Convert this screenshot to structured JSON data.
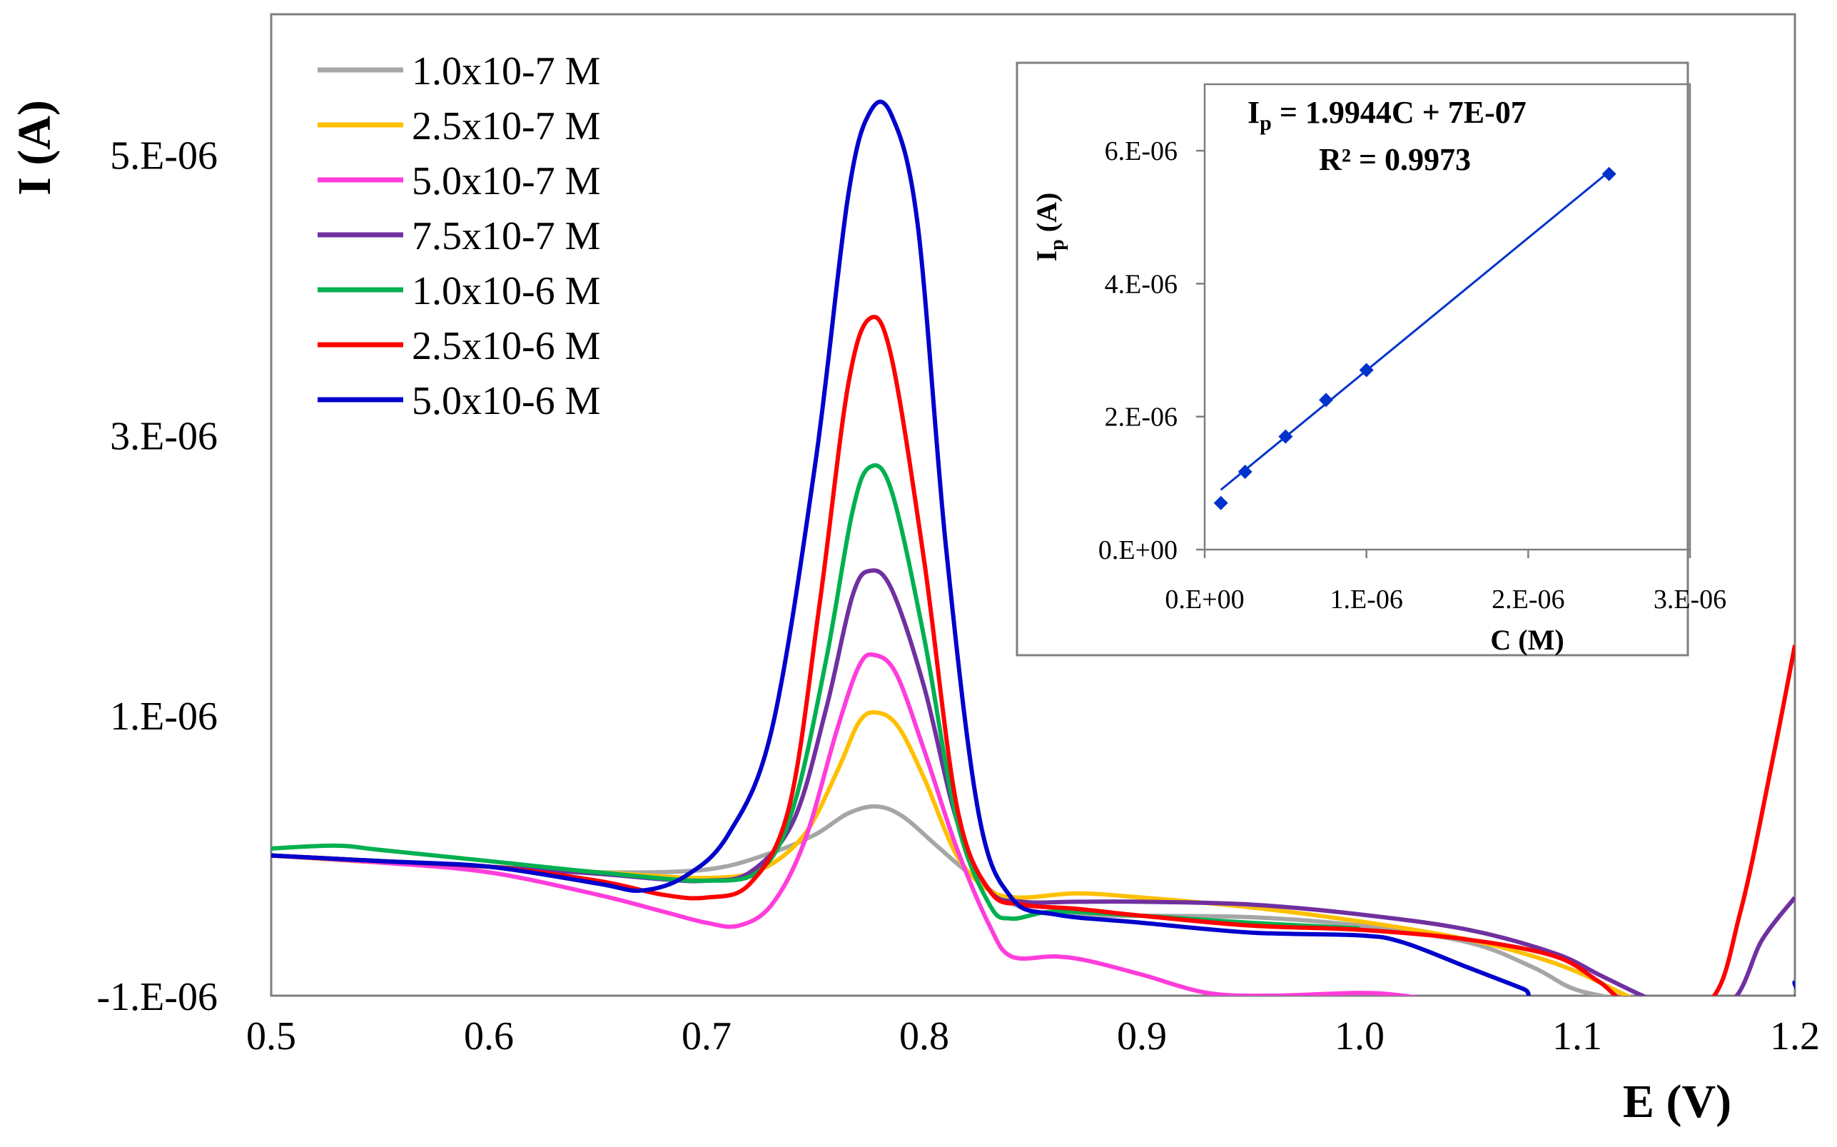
{
  "chart_data": [
    {
      "id": "main",
      "type": "line",
      "title": "",
      "xlabel": "E (V)",
      "ylabel": "I (A)",
      "xlim": [
        0.5,
        1.2
      ],
      "ylim": [
        -1e-06,
        6e-06
      ],
      "xticks": [
        {
          "value": 0.5,
          "label": "0.5"
        },
        {
          "value": 0.6,
          "label": "0.6"
        },
        {
          "value": 0.7,
          "label": "0.7"
        },
        {
          "value": 0.8,
          "label": "0.8"
        },
        {
          "value": 0.9,
          "label": "0.9"
        },
        {
          "value": 1.0,
          "label": "1.0"
        },
        {
          "value": 1.1,
          "label": "1.1"
        },
        {
          "value": 1.2,
          "label": "1.2"
        }
      ],
      "yticks": [
        {
          "value": -1e-06,
          "label": "-1.E-06"
        },
        {
          "value": 1e-06,
          "label": "1.E-06"
        },
        {
          "value": 3e-06,
          "label": "3.E-06"
        },
        {
          "value": 5e-06,
          "label": "5.E-06"
        }
      ],
      "legend": "top-left",
      "series": [
        {
          "name": "1.0x10-7 M",
          "color": "#a6a6a6",
          "points": [
            [
              0.5,
              0.0
            ],
            [
              0.55,
              -4e-08
            ],
            [
              0.6,
              -8e-08
            ],
            [
              0.65,
              -1.2e-07
            ],
            [
              0.7,
              -1e-07
            ],
            [
              0.73,
              2e-08
            ],
            [
              0.75,
              1.5e-07
            ],
            [
              0.765,
              3e-07
            ],
            [
              0.778,
              3.5e-07
            ],
            [
              0.79,
              2.8e-07
            ],
            [
              0.805,
              8e-08
            ],
            [
              0.82,
              -1.2e-07
            ],
            [
              0.84,
              -3.4e-07
            ],
            [
              0.86,
              -4.2e-07
            ],
            [
              0.9,
              -4.3e-07
            ],
            [
              0.95,
              -4.4e-07
            ],
            [
              1.0,
              -5e-07
            ],
            [
              1.05,
              -6.2e-07
            ],
            [
              1.08,
              -8e-07
            ],
            [
              1.1,
              -9.6e-07
            ],
            [
              1.13,
              -1.05e-06
            ]
          ]
        },
        {
          "name": "2.5x10-7 M",
          "color": "#ffc000",
          "points": [
            [
              0.5,
              0.0
            ],
            [
              0.55,
              -5e-08
            ],
            [
              0.6,
              -8e-08
            ],
            [
              0.65,
              -1.2e-07
            ],
            [
              0.7,
              -1.6e-07
            ],
            [
              0.725,
              -1e-07
            ],
            [
              0.745,
              1.5e-07
            ],
            [
              0.76,
              6e-07
            ],
            [
              0.77,
              9.5e-07
            ],
            [
              0.778,
              1.02e-06
            ],
            [
              0.788,
              9.2e-07
            ],
            [
              0.8,
              5.5e-07
            ],
            [
              0.815,
              0.0
            ],
            [
              0.83,
              -2.5e-07
            ],
            [
              0.845,
              -3e-07
            ],
            [
              0.87,
              -2.7e-07
            ],
            [
              0.9,
              -3e-07
            ],
            [
              0.95,
              -3.7e-07
            ],
            [
              1.0,
              -4.7e-07
            ],
            [
              1.05,
              -6e-07
            ],
            [
              1.08,
              -7.2e-07
            ],
            [
              1.1,
              -8.3e-07
            ],
            [
              1.12,
              -9.8e-07
            ],
            [
              1.13,
              -1.05e-06
            ]
          ]
        },
        {
          "name": "5.0x10-7 M",
          "color": "#ff3ddb",
          "points": [
            [
              0.5,
              0.0
            ],
            [
              0.55,
              -5e-08
            ],
            [
              0.6,
              -1.2e-07
            ],
            [
              0.65,
              -2.8e-07
            ],
            [
              0.68,
              -4e-07
            ],
            [
              0.7,
              -4.8e-07
            ],
            [
              0.715,
              -5e-07
            ],
            [
              0.73,
              -3.5e-07
            ],
            [
              0.745,
              1e-07
            ],
            [
              0.76,
              9e-07
            ],
            [
              0.77,
              1.35e-06
            ],
            [
              0.777,
              1.43e-06
            ],
            [
              0.787,
              1.3e-06
            ],
            [
              0.8,
              7.5e-07
            ],
            [
              0.815,
              5e-08
            ],
            [
              0.83,
              -5e-07
            ],
            [
              0.84,
              -7.2e-07
            ],
            [
              0.86,
              -7.2e-07
            ],
            [
              0.875,
              -7.5e-07
            ],
            [
              0.9,
              -8.5e-07
            ],
            [
              0.93,
              -9.8e-07
            ],
            [
              0.96,
              -1e-06
            ],
            [
              1.0,
              -9.8e-07
            ],
            [
              1.02,
              -1e-06
            ],
            [
              1.04,
              -1.05e-06
            ]
          ]
        },
        {
          "name": "7.5x10-7 M",
          "color": "#7030a0",
          "points": [
            [
              0.5,
              0.0
            ],
            [
              0.55,
              -4e-08
            ],
            [
              0.6,
              -8e-08
            ],
            [
              0.65,
              -1.3e-07
            ],
            [
              0.68,
              -1.7e-07
            ],
            [
              0.7,
              -1.8e-07
            ],
            [
              0.72,
              -1.2e-07
            ],
            [
              0.74,
              2.5e-07
            ],
            [
              0.755,
              1.05e-06
            ],
            [
              0.767,
              1.85e-06
            ],
            [
              0.775,
              2.03e-06
            ],
            [
              0.785,
              1.9e-06
            ],
            [
              0.8,
              1.2e-06
            ],
            [
              0.815,
              2.5e-07
            ],
            [
              0.83,
              -2.5e-07
            ],
            [
              0.845,
              -3.3e-07
            ],
            [
              0.87,
              -3.3e-07
            ],
            [
              0.9,
              -3.3e-07
            ],
            [
              0.95,
              -3.5e-07
            ],
            [
              1.0,
              -4.2e-07
            ],
            [
              1.05,
              -5.3e-07
            ],
            [
              1.09,
              -7e-07
            ],
            [
              1.11,
              -8.5e-07
            ],
            [
              1.13,
              -1e-06
            ],
            [
              1.14,
              -1.05e-06
            ],
            [
              1.17,
              -1.05e-06
            ],
            [
              1.185,
              -6e-07
            ],
            [
              1.2,
              -3e-07
            ]
          ]
        },
        {
          "name": "1.0x10-6 M",
          "color": "#00b050",
          "points": [
            [
              0.5,
              5e-08
            ],
            [
              0.53,
              7e-08
            ],
            [
              0.55,
              4e-08
            ],
            [
              0.6,
              -4e-08
            ],
            [
              0.65,
              -1.2e-07
            ],
            [
              0.7,
              -1.8e-07
            ],
            [
              0.725,
              -1e-07
            ],
            [
              0.74,
              3.5e-07
            ],
            [
              0.755,
              1.4e-06
            ],
            [
              0.767,
              2.45e-06
            ],
            [
              0.775,
              2.77e-06
            ],
            [
              0.785,
              2.6e-06
            ],
            [
              0.8,
              1.55e-06
            ],
            [
              0.815,
              2.5e-07
            ],
            [
              0.83,
              -3.5e-07
            ],
            [
              0.84,
              -4.5e-07
            ],
            [
              0.86,
              -4e-07
            ],
            [
              0.9,
              -4.3e-07
            ],
            [
              0.95,
              -4.8e-07
            ],
            [
              1.0,
              -5.2e-07
            ]
          ]
        },
        {
          "name": "2.5x10-6 M",
          "color": "#ff0000",
          "points": [
            [
              0.5,
              0.0
            ],
            [
              0.55,
              -4e-08
            ],
            [
              0.6,
              -8e-08
            ],
            [
              0.65,
              -1.8e-07
            ],
            [
              0.68,
              -2.8e-07
            ],
            [
              0.7,
              -3e-07
            ],
            [
              0.72,
              -2e-07
            ],
            [
              0.738,
              3.5e-07
            ],
            [
              0.752,
              1.8e-06
            ],
            [
              0.765,
              3.35e-06
            ],
            [
              0.775,
              3.83e-06
            ],
            [
              0.785,
              3.55e-06
            ],
            [
              0.8,
              2.1e-06
            ],
            [
              0.815,
              3.5e-07
            ],
            [
              0.83,
              -2.5e-07
            ],
            [
              0.845,
              -3.5e-07
            ],
            [
              0.87,
              -3.8e-07
            ],
            [
              0.9,
              -4.3e-07
            ],
            [
              0.95,
              -5e-07
            ],
            [
              1.0,
              -5.3e-07
            ],
            [
              1.05,
              -6e-07
            ],
            [
              1.09,
              -7.2e-07
            ],
            [
              1.11,
              -9e-07
            ],
            [
              1.125,
              -1.05e-06
            ],
            [
              1.16,
              -1.05e-06
            ],
            [
              1.175,
              -4e-07
            ],
            [
              1.19,
              7e-07
            ],
            [
              1.2,
              1.5e-06
            ]
          ]
        },
        {
          "name": "5.0x10-6 M",
          "color": "#0000cc",
          "points": [
            [
              0.5,
              0.0
            ],
            [
              0.55,
              -4e-08
            ],
            [
              0.6,
              -8e-08
            ],
            [
              0.65,
              -2e-07
            ],
            [
              0.67,
              -2.5e-07
            ],
            [
              0.69,
              -1.5e-07
            ],
            [
              0.71,
              1.5e-07
            ],
            [
              0.73,
              9e-07
            ],
            [
              0.75,
              2.8e-06
            ],
            [
              0.765,
              4.7e-06
            ],
            [
              0.775,
              5.3e-06
            ],
            [
              0.785,
              5.28e-06
            ],
            [
              0.797,
              4.5e-06
            ],
            [
              0.81,
              2.2e-06
            ],
            [
              0.825,
              3e-07
            ],
            [
              0.84,
              -3e-07
            ],
            [
              0.86,
              -4.2e-07
            ],
            [
              0.9,
              -4.8e-07
            ],
            [
              0.95,
              -5.5e-07
            ],
            [
              1.0,
              -5.7e-07
            ],
            [
              1.02,
              -6.2e-07
            ],
            [
              1.05,
              -8e-07
            ],
            [
              1.075,
              -9.5e-07
            ],
            [
              1.09,
              -1.05e-06
            ],
            [
              1.19,
              -1.05e-06
            ],
            [
              1.2,
              -9e-07
            ]
          ]
        }
      ]
    },
    {
      "id": "inset",
      "type": "scatter",
      "title": "",
      "xlabel": "C (M)",
      "ylabel_main": "I",
      "ylabel_sub": "p",
      "ylabel_tail": " (A)",
      "xlim": [
        0,
        3e-06
      ],
      "ylim": [
        0,
        7e-06
      ],
      "xticks": [
        {
          "value": 0,
          "label": "0.E+00"
        },
        {
          "value": 1e-06,
          "label": "1.E-06"
        },
        {
          "value": 2e-06,
          "label": "2.E-06"
        },
        {
          "value": 3e-06,
          "label": "3.E-06"
        }
      ],
      "yticks": [
        {
          "value": 0,
          "label": "0.E+00"
        },
        {
          "value": 2e-06,
          "label": "2.E-06"
        },
        {
          "value": 4e-06,
          "label": "4.E-06"
        },
        {
          "value": 6e-06,
          "label": "6.E-06"
        }
      ],
      "x": [
        1e-07,
        2.5e-07,
        5e-07,
        7.5e-07,
        1e-06,
        2.5e-06
      ],
      "y": [
        7e-07,
        1.17e-06,
        1.7e-06,
        2.25e-06,
        2.7e-06,
        5.65e-06
      ],
      "point_color": "#0033cc",
      "fit": {
        "slope": 1.9944,
        "intercept": 7e-07,
        "color": "#0033cc"
      },
      "equation": {
        "lhs": "I",
        "lhs_sub": "p",
        "rhs": " = 1.9944C + 7E-07"
      },
      "r2": "R² = 0.9973"
    }
  ]
}
